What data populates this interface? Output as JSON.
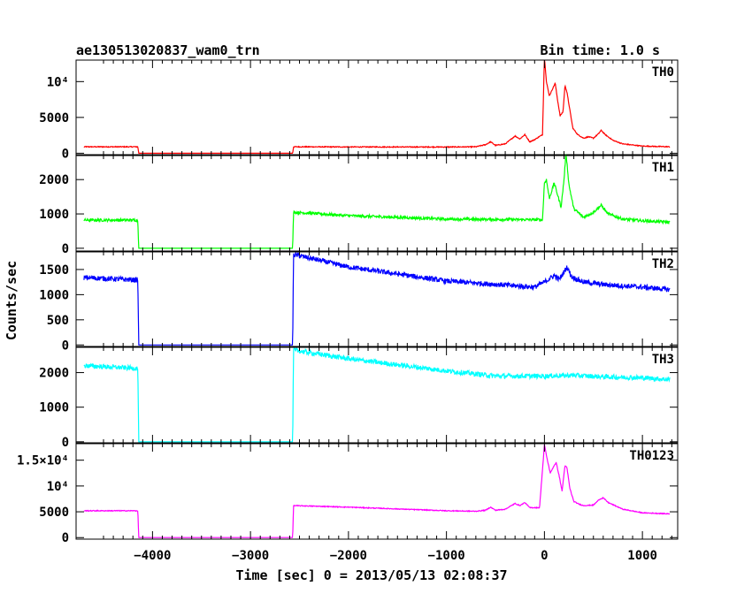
{
  "chart_data": {
    "type": "line",
    "title": "ae130513020837_wam0_trn",
    "bin_time": "Bin time: 1.0 s",
    "xlabel": "Time [sec] 0 = 2013/05/13 02:08:37",
    "ylabel": "Counts/sec",
    "xlim": [
      -4780,
      1360
    ],
    "x_ticks": [
      -4000,
      -3000,
      -2000,
      -1000,
      0,
      1000
    ],
    "x_tick_labels": [
      "−4000",
      "−3000",
      "−2000",
      "−1000",
      "0",
      "1000"
    ],
    "grid": false,
    "panels": [
      {
        "name": "TH0",
        "color": "#ff0000",
        "ylim": [
          -200,
          13000
        ],
        "y_ticks": [
          0,
          5000,
          10000
        ],
        "y_tick_labels": [
          "0",
          "5000",
          "10⁴"
        ],
        "noise": 60,
        "points": [
          [
            -4700,
            900
          ],
          [
            -4150,
            900
          ],
          [
            -4140,
            0
          ],
          [
            -2570,
            0
          ],
          [
            -2560,
            900
          ],
          [
            -2000,
            880
          ],
          [
            -1000,
            870
          ],
          [
            -700,
            900
          ],
          [
            -600,
            1200
          ],
          [
            -550,
            1600
          ],
          [
            -500,
            1100
          ],
          [
            -400,
            1300
          ],
          [
            -300,
            2400
          ],
          [
            -250,
            2000
          ],
          [
            -200,
            2600
          ],
          [
            -150,
            1600
          ],
          [
            -100,
            1900
          ],
          [
            -20,
            2600
          ],
          [
            0,
            13500
          ],
          [
            20,
            10000
          ],
          [
            50,
            8000
          ],
          [
            90,
            9200
          ],
          [
            110,
            9800
          ],
          [
            130,
            7800
          ],
          [
            160,
            5200
          ],
          [
            190,
            5800
          ],
          [
            210,
            9500
          ],
          [
            230,
            8500
          ],
          [
            260,
            6000
          ],
          [
            290,
            3500
          ],
          [
            340,
            2600
          ],
          [
            400,
            2100
          ],
          [
            450,
            2300
          ],
          [
            500,
            2100
          ],
          [
            550,
            2700
          ],
          [
            580,
            3200
          ],
          [
            620,
            2600
          ],
          [
            700,
            1800
          ],
          [
            800,
            1300
          ],
          [
            1000,
            1000
          ],
          [
            1280,
            900
          ]
        ]
      },
      {
        "name": "TH1",
        "color": "#00ff00",
        "ylim": [
          -80,
          2700
        ],
        "y_ticks": [
          0,
          1000,
          2000
        ],
        "y_tick_labels": [
          "0",
          "1000",
          "2000"
        ],
        "noise": 40,
        "points": [
          [
            -4700,
            820
          ],
          [
            -4150,
            820
          ],
          [
            -4140,
            0
          ],
          [
            -2570,
            0
          ],
          [
            -2560,
            1050
          ],
          [
            -2000,
            950
          ],
          [
            -1000,
            850
          ],
          [
            -20,
            830
          ],
          [
            0,
            1900
          ],
          [
            20,
            2000
          ],
          [
            50,
            1450
          ],
          [
            100,
            1900
          ],
          [
            140,
            1500
          ],
          [
            170,
            1200
          ],
          [
            200,
            2000
          ],
          [
            220,
            2800
          ],
          [
            250,
            1850
          ],
          [
            300,
            1150
          ],
          [
            400,
            900
          ],
          [
            500,
            1050
          ],
          [
            580,
            1250
          ],
          [
            650,
            1000
          ],
          [
            800,
            850
          ],
          [
            1000,
            800
          ],
          [
            1280,
            760
          ]
        ]
      },
      {
        "name": "TH2",
        "color": "#0000ff",
        "ylim": [
          -30,
          1850
        ],
        "y_ticks": [
          0,
          500,
          1000,
          1500
        ],
        "y_tick_labels": [
          "0",
          "500",
          "1000",
          "1500"
        ],
        "noise": 50,
        "points": [
          [
            -4700,
            1340
          ],
          [
            -4150,
            1290
          ],
          [
            -4140,
            0
          ],
          [
            -2570,
            0
          ],
          [
            -2560,
            1800
          ],
          [
            -2000,
            1550
          ],
          [
            -1000,
            1270
          ],
          [
            -100,
            1150
          ],
          [
            0,
            1250
          ],
          [
            100,
            1380
          ],
          [
            150,
            1300
          ],
          [
            200,
            1450
          ],
          [
            230,
            1550
          ],
          [
            280,
            1350
          ],
          [
            400,
            1250
          ],
          [
            600,
            1200
          ],
          [
            1000,
            1150
          ],
          [
            1280,
            1100
          ]
        ]
      },
      {
        "name": "TH3",
        "color": "#00ffff",
        "ylim": [
          -30,
          2730
        ],
        "y_ticks": [
          0,
          1000,
          2000
        ],
        "y_tick_labels": [
          "0",
          "1000",
          "2000"
        ],
        "noise": 70,
        "points": [
          [
            -4700,
            2200
          ],
          [
            -4150,
            2120
          ],
          [
            -4140,
            0
          ],
          [
            -2570,
            0
          ],
          [
            -2560,
            2650
          ],
          [
            -2000,
            2400
          ],
          [
            -1000,
            2050
          ],
          [
            -500,
            1900
          ],
          [
            0,
            1900
          ],
          [
            300,
            1920
          ],
          [
            600,
            1880
          ],
          [
            1000,
            1850
          ],
          [
            1280,
            1800
          ]
        ]
      },
      {
        "name": "TH0123",
        "color": "#ff00ff",
        "ylim": [
          -300,
          18200
        ],
        "y_ticks": [
          0,
          5000,
          10000,
          15000
        ],
        "y_tick_labels": [
          "0",
          "5000",
          "10⁴",
          "1.5×10⁴"
        ],
        "noise": 80,
        "points": [
          [
            -4700,
            5200
          ],
          [
            -4150,
            5200
          ],
          [
            -4140,
            0
          ],
          [
            -2570,
            0
          ],
          [
            -2560,
            6200
          ],
          [
            -2000,
            5900
          ],
          [
            -1000,
            5200
          ],
          [
            -700,
            5100
          ],
          [
            -600,
            5300
          ],
          [
            -550,
            5900
          ],
          [
            -500,
            5300
          ],
          [
            -400,
            5500
          ],
          [
            -300,
            6600
          ],
          [
            -250,
            6200
          ],
          [
            -200,
            6800
          ],
          [
            -150,
            5800
          ],
          [
            -50,
            5800
          ],
          [
            0,
            18000
          ],
          [
            30,
            15000
          ],
          [
            60,
            12500
          ],
          [
            100,
            14000
          ],
          [
            120,
            14500
          ],
          [
            150,
            12000
          ],
          [
            180,
            9000
          ],
          [
            210,
            14000
          ],
          [
            230,
            13500
          ],
          [
            260,
            9500
          ],
          [
            300,
            7000
          ],
          [
            350,
            6500
          ],
          [
            400,
            6200
          ],
          [
            500,
            6300
          ],
          [
            560,
            7400
          ],
          [
            600,
            7700
          ],
          [
            650,
            6800
          ],
          [
            800,
            5500
          ],
          [
            1000,
            4800
          ],
          [
            1280,
            4600
          ]
        ]
      }
    ]
  }
}
